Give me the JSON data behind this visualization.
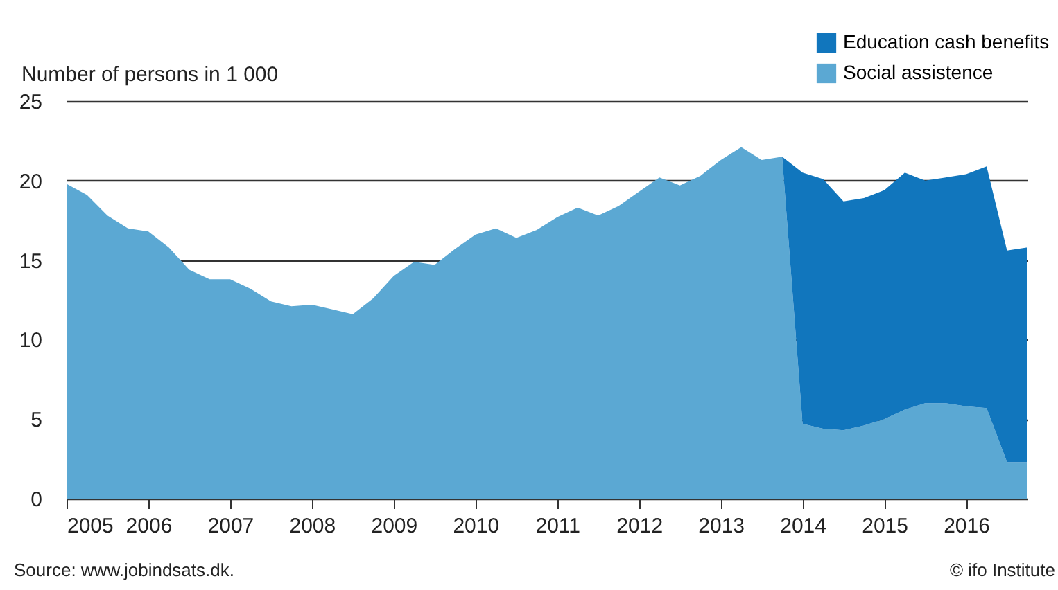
{
  "chart_data": {
    "type": "area",
    "stacked": true,
    "ylabel": "Number of persons in 1 000",
    "x": [
      2005,
      2005.25,
      2005.5,
      2005.75,
      2006,
      2006.25,
      2006.5,
      2006.75,
      2007,
      2007.25,
      2007.5,
      2007.75,
      2008,
      2008.25,
      2008.5,
      2008.75,
      2009,
      2009.25,
      2009.5,
      2009.75,
      2010,
      2010.25,
      2010.5,
      2010.75,
      2011,
      2011.25,
      2011.5,
      2011.75,
      2012,
      2012.25,
      2012.5,
      2012.75,
      2013,
      2013.25,
      2013.5,
      2013.75,
      2014,
      2014.25,
      2014.5,
      2014.75,
      2015,
      2015.25,
      2015.5,
      2015.75,
      2016,
      2016.25,
      2016.5,
      2016.75
    ],
    "series": [
      {
        "name": "Social assistence",
        "color": "#5ba8d3",
        "values": [
          19.8,
          19.1,
          17.8,
          17.0,
          16.8,
          15.8,
          14.4,
          13.8,
          13.8,
          13.2,
          12.4,
          12.1,
          12.2,
          11.9,
          11.6,
          12.6,
          14.0,
          14.9,
          14.7,
          15.7,
          16.6,
          17.0,
          16.4,
          16.9,
          17.7,
          18.3,
          17.8,
          18.4,
          19.3,
          20.2,
          19.7,
          20.3,
          21.3,
          22.1,
          21.3,
          21.5,
          4.7,
          4.4,
          4.3,
          4.6,
          5.0,
          5.6,
          6.0,
          6.0,
          5.8,
          5.7,
          2.3,
          2.3
        ]
      },
      {
        "name": "Education cash benefits",
        "color": "#1176bd",
        "values": [
          0,
          0,
          0,
          0,
          0,
          0,
          0,
          0,
          0,
          0,
          0,
          0,
          0,
          0,
          0,
          0,
          0,
          0,
          0,
          0,
          0,
          0,
          0,
          0,
          0,
          0,
          0,
          0,
          0,
          0,
          0,
          0,
          0,
          0,
          0,
          0,
          15.8,
          15.7,
          14.4,
          14.3,
          14.4,
          14.9,
          14.0,
          14.2,
          14.6,
          15.2,
          13.3,
          13.5
        ]
      }
    ],
    "xlim": [
      2005,
      2016.75
    ],
    "xticks": [
      2005,
      2006,
      2007,
      2008,
      2009,
      2010,
      2011,
      2012,
      2013,
      2014,
      2015,
      2016
    ],
    "ylim": [
      0,
      25
    ],
    "yticks": [
      0,
      5,
      10,
      15,
      20,
      25
    ],
    "grid": "y",
    "legend": "top right",
    "annotations": [
      "Source:  www.jobindsats.dk.",
      "© ifo Institute"
    ]
  }
}
